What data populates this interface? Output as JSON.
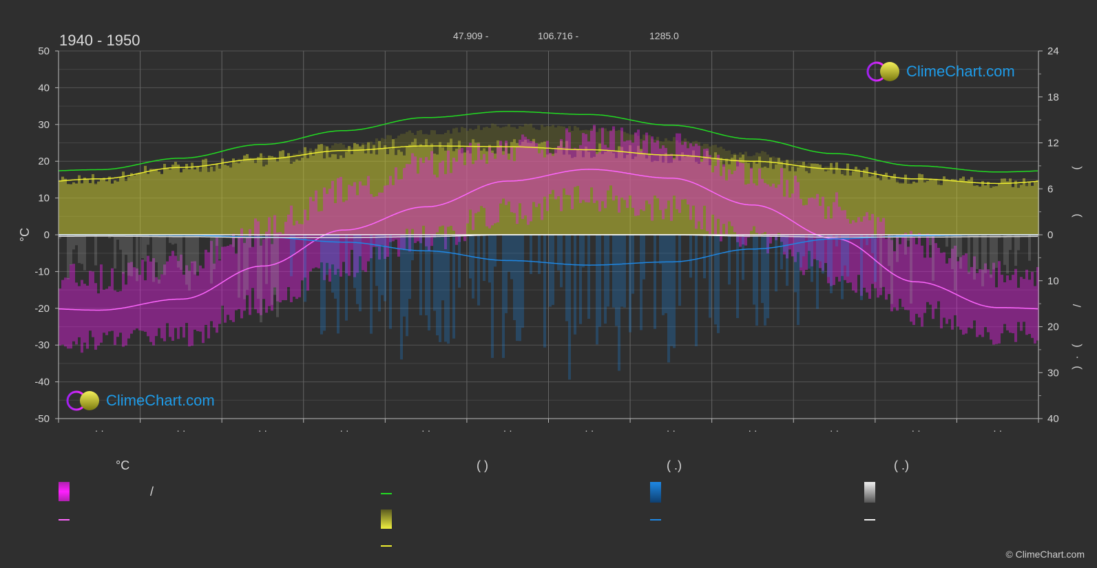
{
  "header": {
    "period": "1940 - 1950",
    "lat": "47.909 -",
    "lon": "106.716 -",
    "elevation": "1285.0"
  },
  "logo_text": "ClimeChart.com",
  "copyright": "© ClimeChart.com",
  "left_axis_unit": "°C",
  "legend": {
    "temp_unit": "°C",
    "sun_paren": "(        )",
    "rain_paren": "(   .)",
    "snow_paren": "(   .)",
    "slash": "/"
  },
  "colors": {
    "background": "#2f2f2f",
    "temp_range": "#e020e0",
    "temp_mean": "#ff66ff",
    "daylight": "#22dd22",
    "sunshine_fill": "#c8c832",
    "sunshine_line": "#f0f030",
    "rain": "#1e88e5",
    "snow": "#e0e0e0",
    "logo_accent": "#1e9be8"
  },
  "chart_data": {
    "type": "area",
    "months": 12,
    "x_tick_labels": [
      "· ·",
      "· ·",
      "· ·",
      "· ·",
      "· ·",
      "· ·",
      "· ·",
      "· ·",
      "· ·",
      "· ·",
      "· ·",
      "· ·"
    ],
    "left_axis": {
      "label": "°C",
      "ylim": [
        -50,
        50
      ],
      "ticks": [
        50,
        40,
        30,
        20,
        10,
        0,
        -10,
        -20,
        -30,
        -40,
        -50
      ]
    },
    "right_axis_top": {
      "ylim": [
        0,
        24
      ],
      "ticks": [
        24,
        18,
        12,
        6,
        0
      ]
    },
    "right_axis_bottom": {
      "ylim": [
        0,
        40
      ],
      "ticks": [
        10,
        20,
        30,
        40
      ],
      "inverted": true
    },
    "right_axis_labels": [
      ")",
      "(",
      "/",
      ")",
      "·",
      "("
    ],
    "grid": true,
    "series": [
      {
        "key": "daylight",
        "unit": "hours",
        "axis": "right_top",
        "values": [
          8.5,
          10.0,
          11.8,
          13.6,
          15.3,
          16.1,
          15.7,
          14.3,
          12.5,
          10.6,
          9.0,
          8.2
        ]
      },
      {
        "key": "sunshine",
        "unit": "hours",
        "axis": "right_top",
        "values": [
          7.3,
          8.8,
          9.9,
          11.0,
          11.6,
          11.5,
          11.1,
          10.4,
          9.6,
          8.6,
          7.3,
          6.7
        ]
      },
      {
        "key": "temp_mean",
        "unit": "°C",
        "axis": "left",
        "values": [
          -20.5,
          -17.5,
          -8.5,
          1.3,
          7.6,
          14.6,
          17.8,
          15.4,
          8.1,
          -1.0,
          -12.8,
          -19.8
        ]
      },
      {
        "key": "temp_max",
        "unit": "°C",
        "axis": "left",
        "values": [
          -12,
          -8,
          1,
          12,
          19,
          24,
          26,
          24,
          17,
          8,
          -3,
          -11
        ]
      },
      {
        "key": "temp_min",
        "unit": "°C",
        "axis": "left",
        "values": [
          -29,
          -27,
          -18,
          -8,
          -1,
          6,
          10,
          7,
          -1,
          -10,
          -21,
          -27
        ]
      },
      {
        "key": "rain",
        "unit": "mm",
        "axis": "right_bottom",
        "values": [
          0.0,
          0.1,
          0.5,
          1.6,
          3.5,
          5.6,
          6.6,
          5.9,
          3.1,
          0.9,
          0.2,
          0.0
        ]
      },
      {
        "key": "snow",
        "unit": "mm",
        "axis": "right_bottom",
        "values": [
          0.3,
          0.4,
          0.6,
          0.6,
          0.4,
          0.0,
          0.0,
          0.0,
          0.3,
          0.5,
          0.5,
          0.4
        ]
      }
    ]
  }
}
